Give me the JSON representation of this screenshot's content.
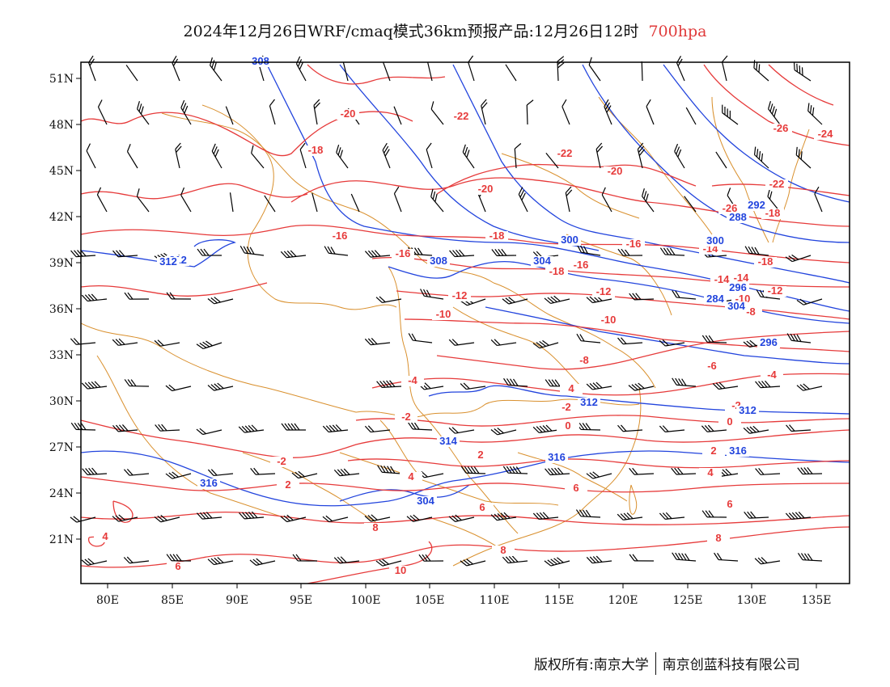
{
  "header": {
    "title": "2024年12月26日WRF/cmaq模式36km预报产品:12月26日12时",
    "level": "700hpa",
    "level_color": "#e03a3a"
  },
  "axes": {
    "x_ticks": [
      "80E",
      "85E",
      "90E",
      "95E",
      "100E",
      "105E",
      "110E",
      "115E",
      "120E",
      "125E",
      "130E",
      "135E"
    ],
    "y_ticks": [
      "51N",
      "48N",
      "45N",
      "42N",
      "39N",
      "36N",
      "33N",
      "30N",
      "27N",
      "24N",
      "21N"
    ]
  },
  "colors": {
    "temperature": "#e63a3a",
    "geopotential": "#2244dd",
    "boundaries": "#d9902e",
    "barbs": "#000000"
  },
  "contour_labels": {
    "temperature": [
      "-18",
      "-16",
      "-20",
      "-16",
      "-18",
      "-22",
      "-22",
      "-20",
      "-20",
      "-26",
      "-26",
      "-24",
      "-22",
      "-18",
      "-16",
      "-14",
      "-18",
      "-18",
      "-16",
      "-14",
      "-14",
      "-12",
      "-12",
      "-10",
      "-10",
      "-12",
      "-10",
      "-8",
      "-8",
      "-6",
      "-4",
      "-4",
      "-2",
      "-2",
      "-2",
      "-2",
      "0",
      "0",
      "2",
      "2",
      "2",
      "4",
      "4",
      "4",
      "4",
      "6",
      "6",
      "6",
      "8",
      "8",
      "8",
      "6",
      "10"
    ],
    "geopotential": [
      "308",
      "312",
      "308",
      "300",
      "304",
      "296",
      "288",
      "292",
      "300",
      "304",
      "312",
      "312",
      "312",
      "314",
      "316",
      "316",
      "316",
      "304",
      "296",
      "284"
    ]
  },
  "footer": {
    "copyright": "版权所有:南京大学",
    "company": "南京创蓝科技有限公司"
  },
  "icons": [
    "wind-barb-icon"
  ]
}
